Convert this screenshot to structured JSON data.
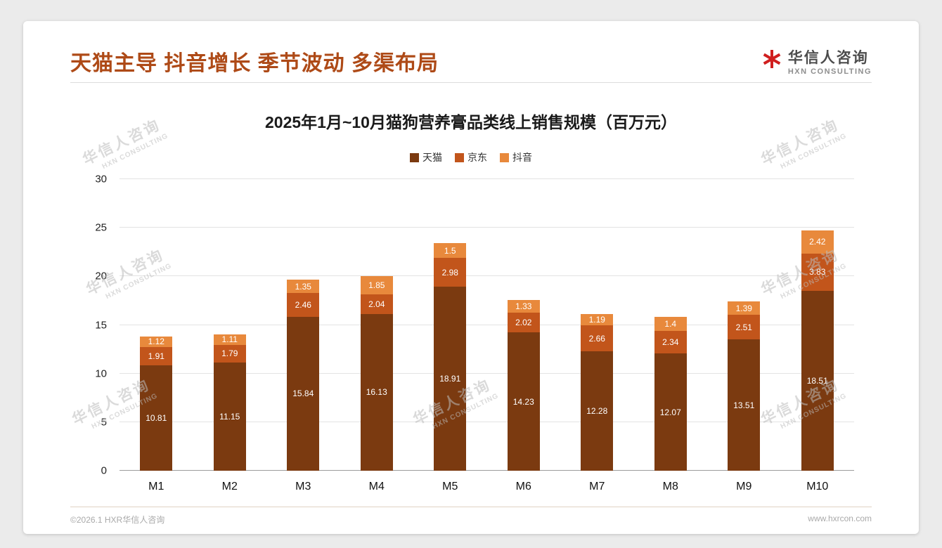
{
  "page": {
    "header_title": "天猫主导 抖音增长 季节波动 多渠布局",
    "logo": {
      "cn": "华信人咨询",
      "en": "HXN CONSULTING"
    },
    "footer_left": "©2026.1 HXR华信人咨询",
    "footer_right": "www.hxrcon.com",
    "watermark": {
      "cn": "华信人咨询",
      "en": "HXN CONSULTING"
    }
  },
  "chart_data": {
    "type": "bar",
    "stacked": true,
    "title": "2025年1月~10月猫狗营养膏品类线上销售规模（百万元）",
    "categories": [
      "M1",
      "M2",
      "M3",
      "M4",
      "M5",
      "M6",
      "M7",
      "M8",
      "M9",
      "M10"
    ],
    "series": [
      {
        "name": "天猫",
        "color": "#7b3a10",
        "values": [
          10.81,
          11.15,
          15.84,
          16.13,
          18.91,
          14.23,
          12.28,
          12.07,
          13.51,
          18.51
        ]
      },
      {
        "name": "京东",
        "color": "#c2551b",
        "values": [
          1.91,
          1.79,
          2.46,
          2.04,
          2.98,
          2.02,
          2.66,
          2.34,
          2.51,
          3.83
        ]
      },
      {
        "name": "抖音",
        "color": "#e8893c",
        "values": [
          1.12,
          1.11,
          1.35,
          1.85,
          1.5,
          1.33,
          1.19,
          1.4,
          1.39,
          2.42
        ]
      }
    ],
    "ylim": [
      0,
      30
    ],
    "yticks": [
      0,
      5,
      10,
      15,
      20,
      25,
      30
    ],
    "grid": true,
    "legend_position": "top",
    "xlabel": "",
    "ylabel": ""
  }
}
